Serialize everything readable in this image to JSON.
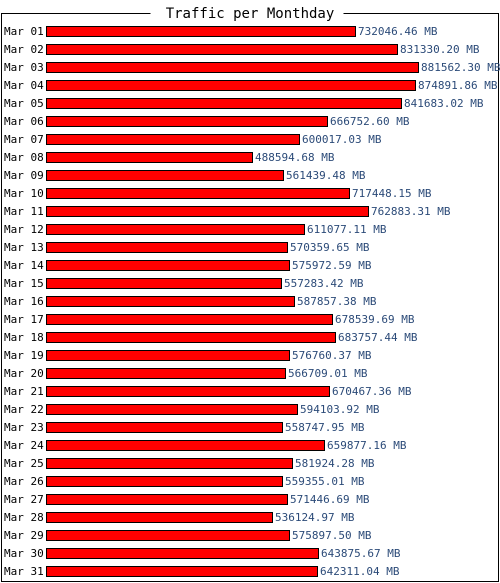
{
  "chart_data": {
    "type": "bar",
    "orientation": "horizontal",
    "title": "Traffic per Monthday",
    "xlabel": "",
    "ylabel": "",
    "unit": "MB",
    "xlim": [
      0,
      881562.3
    ],
    "grid": false,
    "colors": {
      "bar": "#ff0000",
      "bar_border": "#000000",
      "value_text": "#2b4a78",
      "text": "#000000"
    },
    "categories": [
      "Mar 01",
      "Mar 02",
      "Mar 03",
      "Mar 04",
      "Mar 05",
      "Mar 06",
      "Mar 07",
      "Mar 08",
      "Mar 09",
      "Mar 10",
      "Mar 11",
      "Mar 12",
      "Mar 13",
      "Mar 14",
      "Mar 15",
      "Mar 16",
      "Mar 17",
      "Mar 18",
      "Mar 19",
      "Mar 20",
      "Mar 21",
      "Mar 22",
      "Mar 23",
      "Mar 24",
      "Mar 25",
      "Mar 26",
      "Mar 27",
      "Mar 28",
      "Mar 29",
      "Mar 30",
      "Mar 31"
    ],
    "values": [
      732046.46,
      831330.2,
      881562.3,
      874891.86,
      841683.02,
      666752.6,
      600017.03,
      488594.68,
      561439.48,
      717448.15,
      762883.31,
      611077.11,
      570359.65,
      575972.59,
      557283.42,
      587857.38,
      678539.69,
      683757.44,
      576760.37,
      566709.01,
      670467.36,
      594103.92,
      558747.95,
      659877.16,
      581924.28,
      559355.01,
      571446.69,
      536124.97,
      575897.5,
      643875.67,
      642311.04
    ],
    "value_labels": [
      "732046.46 MB",
      "831330.20 MB",
      "881562.30 MB",
      "874891.86 MB",
      "841683.02 MB",
      "666752.60 MB",
      "600017.03 MB",
      "488594.68 MB",
      "561439.48 MB",
      "717448.15 MB",
      "762883.31 MB",
      "611077.11 MB",
      "570359.65 MB",
      "575972.59 MB",
      "557283.42 MB",
      "587857.38 MB",
      "678539.69 MB",
      "683757.44 MB",
      "576760.37 MB",
      "566709.01 MB",
      "670467.36 MB",
      "594103.92 MB",
      "558747.95 MB",
      "659877.16 MB",
      "581924.28 MB",
      "559355.01 MB",
      "571446.69 MB",
      "536124.97 MB",
      "575897.50 MB",
      "643875.67 MB",
      "642311.04 MB"
    ]
  }
}
